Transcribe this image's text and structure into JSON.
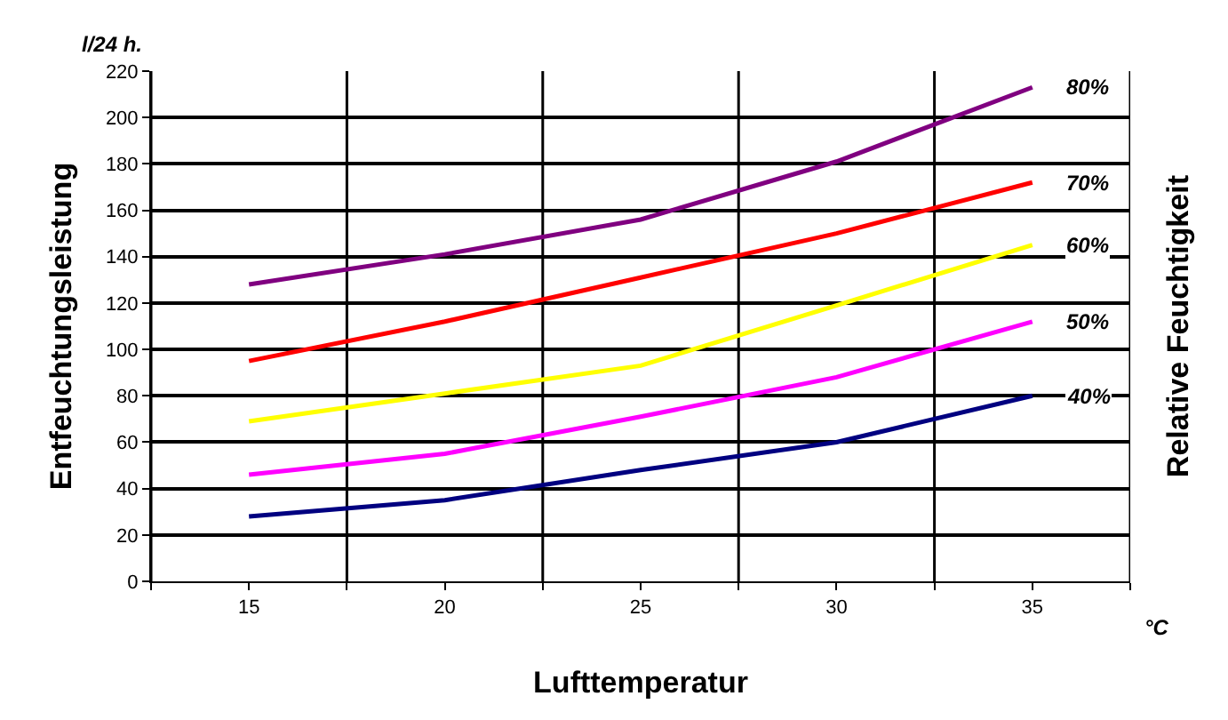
{
  "chart_data": {
    "type": "line",
    "xlabel": "Lufttemperatur",
    "ylabel": "Entfeuchtungsleistung",
    "y2label": "Relative Feuchtigkeit",
    "annotations": [
      "l/24 h.",
      "°C"
    ],
    "x": [
      15,
      20,
      25,
      30,
      35
    ],
    "series": [
      {
        "name": "80%",
        "color": "#800080",
        "values": [
          128,
          141,
          156,
          181,
          213
        ]
      },
      {
        "name": "70%",
        "color": "#ff0000",
        "values": [
          95,
          112,
          131,
          150,
          172
        ]
      },
      {
        "name": "60%",
        "color": "#ffff00",
        "values": [
          69,
          81,
          93,
          119,
          145
        ]
      },
      {
        "name": "50%",
        "color": "#ff00ff",
        "values": [
          46,
          55,
          71,
          88,
          112
        ]
      },
      {
        "name": "40%",
        "color": "#000080",
        "values": [
          28,
          35,
          48,
          60,
          80
        ]
      }
    ],
    "xlim": [
      12.5,
      37.5
    ],
    "xticks": [
      {
        "value": 12.5,
        "label": null
      },
      15,
      {
        "value": 17.5,
        "label": null
      },
      20,
      {
        "value": 22.5,
        "label": null
      },
      25,
      {
        "value": 27.5,
        "label": null
      },
      30,
      {
        "value": 32.5,
        "label": null
      },
      35,
      {
        "value": 37.5,
        "label": null
      }
    ],
    "ylim": [
      0,
      220
    ],
    "yticks": [
      0,
      20,
      40,
      60,
      80,
      100,
      120,
      140,
      160,
      180,
      200,
      220
    ],
    "grid": true,
    "legend": false,
    "marker": "none",
    "line_style": "solid"
  }
}
